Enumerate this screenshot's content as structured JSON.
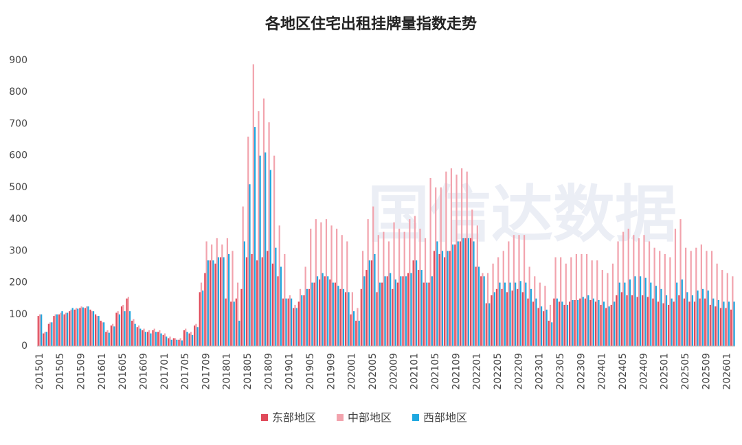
{
  "chart_data": {
    "type": "bar",
    "title": "各地区住宅出租挂牌量指数走势",
    "watermark": "国信达数据",
    "categories": [
      "201501",
      null,
      null,
      null,
      "201505",
      null,
      null,
      null,
      "201509",
      null,
      null,
      null,
      "201601",
      null,
      null,
      null,
      "201605",
      null,
      null,
      null,
      "201609",
      null,
      null,
      null,
      "201701",
      null,
      null,
      null,
      "201705",
      null,
      null,
      null,
      "201709",
      null,
      null,
      null,
      "201801",
      null,
      null,
      null,
      "201805",
      null,
      null,
      null,
      "201809",
      null,
      null,
      null,
      "201901",
      null,
      null,
      null,
      "201905",
      null,
      null,
      null,
      "201909",
      null,
      null,
      null,
      "202001",
      null,
      null,
      null,
      "202005",
      null,
      null,
      null,
      "202009",
      null,
      null,
      null,
      "202101",
      null,
      null,
      null,
      "202105",
      null,
      null,
      null,
      "202109",
      null,
      null,
      null,
      "202201",
      null,
      null,
      null,
      "202205",
      null,
      null,
      null,
      "202209",
      null,
      null,
      null,
      "202301",
      null,
      null,
      null,
      "202305",
      null,
      null,
      null,
      "202309",
      null,
      null,
      null,
      "202401",
      null,
      null,
      null,
      "202405",
      null,
      null,
      null,
      "202409",
      null,
      null,
      null,
      "202501",
      null,
      null,
      null,
      "202505",
      null,
      null,
      null,
      "202509",
      null,
      null,
      null,
      "202601",
      null
    ],
    "series": [
      {
        "name": "东部地区",
        "color": "#e04a5a",
        "values": [
          95,
          40,
          70,
          95,
          100,
          100,
          110,
          115,
          120,
          120,
          115,
          100,
          80,
          45,
          65,
          105,
          125,
          150,
          80,
          60,
          50,
          45,
          50,
          45,
          35,
          25,
          25,
          20,
          50,
          40,
          65,
          170,
          230,
          270,
          260,
          280,
          150,
          140,
          150,
          180,
          280,
          290,
          270,
          280,
          300,
          260,
          220,
          150,
          150,
          120,
          140,
          160,
          180,
          200,
          210,
          220,
          210,
          200,
          180,
          170,
          100,
          80,
          180,
          240,
          270,
          170,
          200,
          220,
          180,
          200,
          220,
          230,
          270,
          240,
          200,
          200,
          300,
          290,
          280,
          300,
          320,
          330,
          340,
          340,
          250,
          220,
          135,
          160,
          180,
          180,
          170,
          175,
          180,
          170,
          150,
          140,
          120,
          110,
          80,
          150,
          140,
          130,
          140,
          145,
          150,
          150,
          145,
          140,
          130,
          120,
          130,
          160,
          170,
          160,
          160,
          155,
          160,
          155,
          150,
          140,
          135,
          130,
          140,
          160,
          150,
          140,
          140,
          150,
          150,
          130,
          125,
          120,
          120,
          115
        ]
      },
      {
        "name": "中部地区",
        "color": "#f2a3ad",
        "values": [
          100,
          45,
          75,
          100,
          105,
          105,
          115,
          120,
          125,
          125,
          110,
          95,
          75,
          50,
          70,
          110,
          130,
          155,
          85,
          65,
          55,
          50,
          55,
          50,
          40,
          30,
          25,
          25,
          55,
          45,
          70,
          200,
          330,
          320,
          340,
          320,
          340,
          300,
          200,
          440,
          660,
          888,
          740,
          780,
          705,
          600,
          380,
          290,
          160,
          130,
          180,
          250,
          370,
          400,
          390,
          400,
          380,
          370,
          350,
          330,
          170,
          120,
          300,
          400,
          440,
          350,
          360,
          330,
          390,
          370,
          360,
          400,
          410,
          370,
          340,
          530,
          500,
          500,
          550,
          560,
          540,
          560,
          550,
          430,
          380,
          230,
          230,
          260,
          280,
          300,
          330,
          350,
          350,
          350,
          250,
          220,
          200,
          190,
          130,
          280,
          280,
          260,
          280,
          290,
          290,
          290,
          270,
          270,
          240,
          230,
          260,
          330,
          360,
          370,
          350,
          340,
          350,
          330,
          310,
          300,
          290,
          280,
          370,
          400,
          310,
          300,
          310,
          320,
          300,
          300,
          260,
          240,
          230,
          220
        ]
      },
      {
        "name": "西部地区",
        "color": "#1fa8e0",
        "values": [
          100,
          45,
          75,
          100,
          110,
          105,
          120,
          118,
          122,
          125,
          110,
          95,
          75,
          42,
          62,
          100,
          110,
          110,
          70,
          55,
          45,
          40,
          45,
          40,
          30,
          20,
          20,
          18,
          45,
          35,
          60,
          175,
          270,
          270,
          280,
          280,
          290,
          140,
          80,
          330,
          510,
          690,
          600,
          610,
          555,
          310,
          250,
          150,
          150,
          120,
          160,
          180,
          200,
          220,
          230,
          220,
          200,
          190,
          180,
          170,
          110,
          80,
          220,
          270,
          290,
          200,
          220,
          230,
          210,
          220,
          220,
          230,
          270,
          240,
          200,
          220,
          330,
          300,
          300,
          320,
          330,
          340,
          340,
          330,
          250,
          220,
          135,
          170,
          200,
          200,
          200,
          200,
          205,
          200,
          180,
          150,
          125,
          115,
          75,
          150,
          140,
          130,
          145,
          145,
          155,
          160,
          150,
          145,
          140,
          125,
          140,
          200,
          200,
          210,
          220,
          220,
          215,
          200,
          190,
          180,
          160,
          150,
          200,
          210,
          170,
          160,
          175,
          180,
          175,
          150,
          145,
          140,
          140,
          140
        ]
      }
    ],
    "ylim": [
      0,
      900
    ],
    "yticks": [
      0,
      100,
      200,
      300,
      400,
      500,
      600,
      700,
      800,
      900
    ],
    "grid": false
  }
}
